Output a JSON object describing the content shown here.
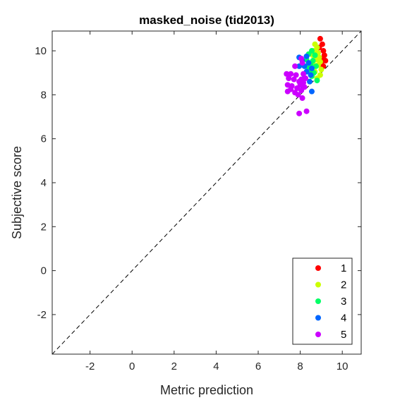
{
  "chart_data": {
    "type": "scatter",
    "title": "masked_noise (tid2013)",
    "xlabel": "Metric prediction",
    "ylabel": "Subjective score",
    "xlim": [
      -3.8,
      10.9
    ],
    "ylim": [
      -3.8,
      10.9
    ],
    "xticks": [
      -2,
      0,
      2,
      4,
      6,
      8,
      10
    ],
    "yticks": [
      -2,
      0,
      2,
      4,
      6,
      8,
      10
    ],
    "grid": false,
    "legend_position": "bottom-right",
    "reference_line": "y = x (dashed)",
    "series": [
      {
        "name": "1",
        "color": "#ff0000",
        "points": [
          [
            8.95,
            10.55
          ],
          [
            9.05,
            10.3
          ],
          [
            8.9,
            10.15
          ],
          [
            9.1,
            10.0
          ],
          [
            9.15,
            9.8
          ],
          [
            9.05,
            9.65
          ],
          [
            9.2,
            9.55
          ],
          [
            9.0,
            9.4
          ],
          [
            9.1,
            9.3
          ]
        ]
      },
      {
        "name": "2",
        "color": "#ccff00",
        "points": [
          [
            8.7,
            10.3
          ],
          [
            8.8,
            10.15
          ],
          [
            8.65,
            10.0
          ],
          [
            8.85,
            9.9
          ],
          [
            8.6,
            9.8
          ],
          [
            8.9,
            9.7
          ],
          [
            8.75,
            9.6
          ],
          [
            8.95,
            9.5
          ],
          [
            8.6,
            9.45
          ],
          [
            8.85,
            9.35
          ],
          [
            9.0,
            9.15
          ],
          [
            8.7,
            9.05
          ],
          [
            8.95,
            8.9
          ],
          [
            8.8,
            8.75
          ]
        ]
      },
      {
        "name": "3",
        "color": "#00ff66",
        "points": [
          [
            8.55,
            10.0
          ],
          [
            8.4,
            9.85
          ],
          [
            8.7,
            9.8
          ],
          [
            8.3,
            9.6
          ],
          [
            8.6,
            9.55
          ],
          [
            8.5,
            9.4
          ],
          [
            8.75,
            9.3
          ],
          [
            8.35,
            9.25
          ],
          [
            8.45,
            9.1
          ],
          [
            8.65,
            9.0
          ],
          [
            8.55,
            8.85
          ],
          [
            8.8,
            8.65
          ]
        ]
      },
      {
        "name": "4",
        "color": "#0066ff",
        "points": [
          [
            7.95,
            9.7
          ],
          [
            8.3,
            9.75
          ],
          [
            8.1,
            9.55
          ],
          [
            8.4,
            9.45
          ],
          [
            7.95,
            9.3
          ],
          [
            8.2,
            9.3
          ],
          [
            8.55,
            9.2
          ],
          [
            8.3,
            9.05
          ],
          [
            8.5,
            8.9
          ],
          [
            8.2,
            8.75
          ],
          [
            8.45,
            8.6
          ],
          [
            8.55,
            8.15
          ],
          [
            8.15,
            8.35
          ]
        ]
      },
      {
        "name": "5",
        "color": "#cc00ff",
        "points": [
          [
            8.05,
            9.65
          ],
          [
            8.1,
            9.45
          ],
          [
            7.75,
            9.3
          ],
          [
            7.35,
            8.95
          ],
          [
            7.55,
            8.95
          ],
          [
            7.8,
            8.9
          ],
          [
            8.15,
            8.95
          ],
          [
            7.45,
            8.75
          ],
          [
            7.7,
            8.7
          ],
          [
            8.05,
            8.7
          ],
          [
            8.25,
            8.75
          ],
          [
            7.95,
            8.6
          ],
          [
            8.15,
            8.55
          ],
          [
            7.4,
            8.45
          ],
          [
            7.6,
            8.4
          ],
          [
            8.0,
            8.45
          ],
          [
            7.55,
            8.25
          ],
          [
            7.85,
            8.3
          ],
          [
            8.2,
            8.35
          ],
          [
            7.4,
            8.15
          ],
          [
            7.75,
            8.1
          ],
          [
            8.05,
            8.2
          ],
          [
            7.9,
            8.0
          ],
          [
            8.1,
            7.85
          ],
          [
            7.95,
            7.15
          ],
          [
            8.3,
            7.25
          ]
        ]
      }
    ]
  }
}
